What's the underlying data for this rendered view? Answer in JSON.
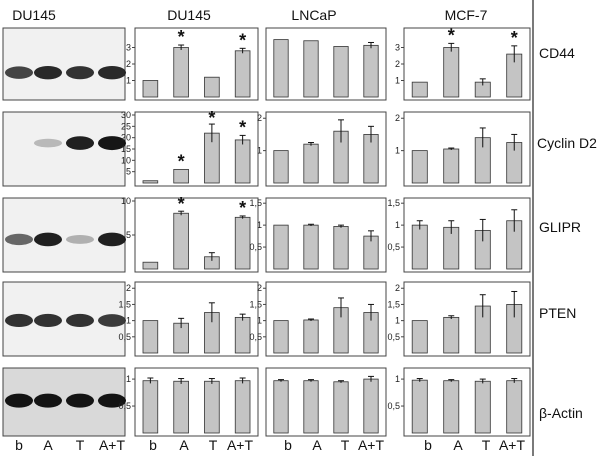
{
  "column_titles": [
    "DU145",
    "DU145",
    "LNCaP",
    "MCF-7"
  ],
  "row_labels": [
    "CD44",
    "Cyclin D2",
    "GLIPR",
    "PTEN",
    "β-Actin"
  ],
  "x_labels": [
    "b",
    "A",
    "T",
    "A+T"
  ],
  "colors": {
    "bar_fill": "#c4c4c4",
    "bar_stroke": "#333333",
    "frame": "#444444"
  },
  "chart_data": [
    {
      "type": "bar",
      "row": "CD44",
      "cell_line": "DU145",
      "categories": [
        "b",
        "A",
        "T",
        "A+T"
      ],
      "values": [
        1,
        3,
        1.2,
        2.8
      ],
      "errors": [
        0,
        0.15,
        0,
        0.15
      ],
      "ylim": [
        0,
        4
      ],
      "yticks": [
        1,
        2,
        3
      ],
      "significant": [
        false,
        true,
        false,
        true
      ]
    },
    {
      "type": "bar",
      "row": "CD44",
      "cell_line": "LNCaP",
      "categories": [
        "b",
        "A",
        "T",
        "A+T"
      ],
      "values": [
        1,
        0.98,
        0.88,
        0.9
      ],
      "errors": [
        0,
        0,
        0,
        0.05
      ],
      "ylim": [
        0,
        1.15
      ],
      "yticks": [],
      "significant": [
        false,
        false,
        false,
        false
      ]
    },
    {
      "type": "bar",
      "row": "CD44",
      "cell_line": "MCF-7",
      "categories": [
        "b",
        "A",
        "T",
        "A+T"
      ],
      "values": [
        0.9,
        3,
        0.9,
        2.6
      ],
      "errors": [
        0,
        0.25,
        0.2,
        0.5
      ],
      "ylim": [
        0,
        4
      ],
      "yticks": [
        1,
        2,
        3
      ],
      "significant": [
        false,
        true,
        false,
        true
      ]
    },
    {
      "type": "bar",
      "row": "Cyclin D2",
      "cell_line": "DU145",
      "categories": [
        "b",
        "A",
        "T",
        "A+T"
      ],
      "values": [
        1,
        6,
        22,
        19
      ],
      "errors": [
        0,
        0,
        4,
        2
      ],
      "ylim": [
        0,
        30
      ],
      "yticks": [
        5,
        10,
        15,
        20,
        25,
        30
      ],
      "significant": [
        false,
        true,
        true,
        true
      ]
    },
    {
      "type": "bar",
      "row": "Cyclin D2",
      "cell_line": "LNCaP",
      "categories": [
        "b",
        "A",
        "T",
        "A+T"
      ],
      "values": [
        1,
        1.2,
        1.6,
        1.5
      ],
      "errors": [
        0,
        0.05,
        0.35,
        0.25
      ],
      "ylim": [
        0,
        2.1
      ],
      "yticks": [
        1,
        2
      ],
      "significant": [
        false,
        false,
        false,
        false
      ]
    },
    {
      "type": "bar",
      "row": "Cyclin D2",
      "cell_line": "MCF-7",
      "categories": [
        "b",
        "A",
        "T",
        "A+T"
      ],
      "values": [
        1,
        1.05,
        1.4,
        1.25
      ],
      "errors": [
        0,
        0.03,
        0.3,
        0.25
      ],
      "ylim": [
        0,
        2.1
      ],
      "yticks": [
        1,
        2
      ],
      "significant": [
        false,
        false,
        false,
        false
      ]
    },
    {
      "type": "bar",
      "row": "GLIPR",
      "cell_line": "DU145",
      "categories": [
        "b",
        "A",
        "T",
        "A+T"
      ],
      "values": [
        1,
        8.2,
        1.8,
        7.6
      ],
      "errors": [
        0,
        0.3,
        0.6,
        0.2
      ],
      "ylim": [
        0,
        10
      ],
      "yticks": [
        5,
        10
      ],
      "significant": [
        false,
        true,
        false,
        true
      ]
    },
    {
      "type": "bar",
      "row": "GLIPR",
      "cell_line": "LNCaP",
      "categories": [
        "b",
        "A",
        "T",
        "A+T"
      ],
      "values": [
        1,
        1,
        0.97,
        0.75
      ],
      "errors": [
        0,
        0.02,
        0.03,
        0.12
      ],
      "ylim": [
        0,
        1.55
      ],
      "yticks": [
        0.5,
        1,
        1.5
      ],
      "significant": [
        false,
        false,
        false,
        false
      ]
    },
    {
      "type": "bar",
      "row": "GLIPR",
      "cell_line": "MCF-7",
      "categories": [
        "b",
        "A",
        "T",
        "A+T"
      ],
      "values": [
        1,
        0.95,
        0.88,
        1.1
      ],
      "errors": [
        0.1,
        0.15,
        0.25,
        0.25
      ],
      "ylim": [
        0,
        1.55
      ],
      "yticks": [
        0.5,
        1,
        1.5
      ],
      "significant": [
        false,
        false,
        false,
        false
      ]
    },
    {
      "type": "bar",
      "row": "PTEN",
      "cell_line": "DU145",
      "categories": [
        "b",
        "A",
        "T",
        "A+T"
      ],
      "values": [
        1,
        0.92,
        1.25,
        1.1
      ],
      "errors": [
        0,
        0.15,
        0.3,
        0.1
      ],
      "ylim": [
        0,
        2.1
      ],
      "yticks": [
        0.5,
        1,
        1.5,
        2
      ],
      "significant": [
        false,
        false,
        false,
        false
      ]
    },
    {
      "type": "bar",
      "row": "PTEN",
      "cell_line": "LNCaP",
      "categories": [
        "b",
        "A",
        "T",
        "A+T"
      ],
      "values": [
        1,
        1.02,
        1.4,
        1.25
      ],
      "errors": [
        0,
        0.03,
        0.3,
        0.25
      ],
      "ylim": [
        0,
        2.1
      ],
      "yticks": [
        0.5,
        1,
        1.5,
        2
      ],
      "significant": [
        false,
        false,
        false,
        false
      ]
    },
    {
      "type": "bar",
      "row": "PTEN",
      "cell_line": "MCF-7",
      "categories": [
        "b",
        "A",
        "T",
        "A+T"
      ],
      "values": [
        1,
        1.1,
        1.45,
        1.5
      ],
      "errors": [
        0,
        0.05,
        0.35,
        0.4
      ],
      "ylim": [
        0,
        2.1
      ],
      "yticks": [
        0.5,
        1,
        1.5,
        2
      ],
      "significant": [
        false,
        false,
        false,
        false
      ]
    },
    {
      "type": "bar",
      "row": "β-Actin",
      "cell_line": "DU145",
      "categories": [
        "b",
        "A",
        "T",
        "A+T"
      ],
      "values": [
        0.97,
        0.96,
        0.96,
        0.97
      ],
      "errors": [
        0.05,
        0.05,
        0.05,
        0.05
      ],
      "ylim": [
        0,
        1.15
      ],
      "yticks": [
        0.5,
        1
      ],
      "significant": [
        false,
        false,
        false,
        false
      ]
    },
    {
      "type": "bar",
      "row": "β-Actin",
      "cell_line": "LNCaP",
      "categories": [
        "b",
        "A",
        "T",
        "A+T"
      ],
      "values": [
        0.97,
        0.97,
        0.95,
        1
      ],
      "errors": [
        0.02,
        0.02,
        0.02,
        0.05
      ],
      "ylim": [
        0,
        1.15
      ],
      "yticks": [],
      "significant": [
        false,
        false,
        false,
        false
      ]
    },
    {
      "type": "bar",
      "row": "β-Actin",
      "cell_line": "MCF-7",
      "categories": [
        "b",
        "A",
        "T",
        "A+T"
      ],
      "values": [
        0.98,
        0.97,
        0.96,
        0.97
      ],
      "errors": [
        0.03,
        0.02,
        0.04,
        0.04
      ],
      "ylim": [
        0,
        1.15
      ],
      "yticks": [
        0.5,
        1
      ],
      "significant": [
        false,
        false,
        false,
        false
      ]
    }
  ]
}
